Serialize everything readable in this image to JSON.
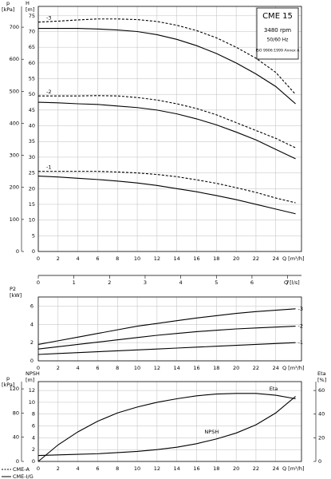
{
  "chart_data": [
    {
      "type": "line",
      "info": [
        "CME 15",
        "3480 rpm",
        "50/60 Hz",
        "ISO 9906:1999 Annex A"
      ],
      "y_label": "H",
      "y_unit": "[m]",
      "p_label": "p",
      "p_unit": "[kPa]",
      "x_label": "Q [m³/h]",
      "x": [
        0,
        2,
        4,
        6,
        8,
        10,
        12,
        14,
        16,
        18,
        20,
        22,
        24,
        26
      ],
      "xlim": [
        0,
        26.6
      ],
      "xticks": [
        0,
        2,
        4,
        6,
        8,
        10,
        12,
        14,
        16,
        18,
        20,
        22,
        24
      ],
      "ylim": [
        0,
        78
      ],
      "yticks": [
        0,
        5,
        10,
        15,
        20,
        25,
        30,
        35,
        40,
        45,
        50,
        55,
        60,
        65,
        70,
        75
      ],
      "plim": [
        0,
        765
      ],
      "pticks": [
        0,
        100,
        200,
        300,
        400,
        500,
        600,
        700
      ],
      "x2_label": "Q [l/s]",
      "x2lim": [
        0,
        7.39
      ],
      "x2ticks": [
        0,
        1,
        2,
        3,
        4,
        5,
        6,
        7
      ],
      "grid": true,
      "series": [
        {
          "label": "-3",
          "dash": true,
          "color": "#000000",
          "values": [
            73,
            73.3,
            73.7,
            74,
            74,
            73.8,
            73.2,
            72,
            70.3,
            68,
            65,
            61.5,
            57,
            50
          ]
        },
        {
          "dash": false,
          "color": "#000000",
          "values": [
            71,
            71,
            71,
            70.8,
            70.5,
            70,
            69,
            67.5,
            65.5,
            63,
            60,
            56.5,
            52.5,
            47
          ]
        },
        {
          "label": "-2",
          "dash": true,
          "color": "#000000",
          "values": [
            49.5,
            49.5,
            49.5,
            49.6,
            49.5,
            49,
            48.2,
            47,
            45.5,
            43.5,
            41,
            38.5,
            36,
            33
          ]
        },
        {
          "dash": false,
          "color": "#000000",
          "values": [
            47.5,
            47.3,
            47,
            46.8,
            46.3,
            45.8,
            45,
            43.8,
            42.2,
            40.3,
            38,
            35.5,
            32.5,
            29.5
          ]
        },
        {
          "label": "-1",
          "dash": true,
          "color": "#000000",
          "values": [
            25.5,
            25.5,
            25.5,
            25.5,
            25.3,
            25,
            24.5,
            23.8,
            22.8,
            21.7,
            20.3,
            18.8,
            17,
            15.5
          ]
        },
        {
          "dash": false,
          "color": "#000000",
          "values": [
            24,
            23.7,
            23.3,
            22.9,
            22.4,
            21.8,
            21,
            20,
            19,
            17.8,
            16.5,
            15,
            13.5,
            12
          ]
        }
      ]
    },
    {
      "type": "line",
      "y_label": "P2",
      "y_unit": "[kW]",
      "x_label": "Q [m³/h]",
      "x": [
        0,
        2,
        4,
        6,
        8,
        10,
        12,
        14,
        16,
        18,
        20,
        22,
        24,
        26
      ],
      "xlim": [
        0,
        26.6
      ],
      "xticks": [
        0,
        2,
        4,
        6,
        8,
        10,
        12,
        14,
        16,
        18,
        20,
        22,
        24
      ],
      "ylim": [
        0,
        7
      ],
      "yticks": [
        0,
        2,
        4,
        6
      ],
      "grid": true,
      "series": [
        {
          "label": "-3",
          "color": "#000000",
          "values": [
            1.8,
            2.2,
            2.6,
            3.0,
            3.4,
            3.8,
            4.1,
            4.4,
            4.7,
            4.95,
            5.2,
            5.4,
            5.55,
            5.7
          ]
        },
        {
          "label": "-2",
          "color": "#000000",
          "values": [
            1.3,
            1.55,
            1.8,
            2.05,
            2.3,
            2.55,
            2.8,
            3.0,
            3.2,
            3.35,
            3.5,
            3.6,
            3.7,
            3.8
          ]
        },
        {
          "label": "-1",
          "color": "#000000",
          "values": [
            0.7,
            0.8,
            0.9,
            1.0,
            1.1,
            1.2,
            1.3,
            1.4,
            1.5,
            1.6,
            1.7,
            1.8,
            1.9,
            2.0
          ]
        }
      ]
    },
    {
      "type": "line",
      "y_label": "NPSH",
      "y_unit": "[m]",
      "p_label": "p",
      "p_unit": "[kPa]",
      "y2_label": "Eta",
      "y2_unit": "[%]",
      "x_label": "Q [m³/h]",
      "x": [
        0,
        2,
        4,
        6,
        8,
        10,
        12,
        14,
        16,
        18,
        20,
        22,
        24,
        26
      ],
      "xlim": [
        0,
        26.6
      ],
      "xticks": [
        0,
        2,
        4,
        6,
        8,
        10,
        12,
        14,
        16,
        18,
        20,
        22,
        24
      ],
      "ylim": [
        0,
        13.5
      ],
      "yticks": [
        0,
        2,
        4,
        6,
        8,
        10,
        12
      ],
      "plim": [
        0,
        132
      ],
      "pticks": [
        0,
        40,
        80,
        120
      ],
      "y2lim": [
        0,
        67.5
      ],
      "y2ticks": [
        0,
        20,
        40,
        60
      ],
      "grid": true,
      "series": [
        {
          "label": "Eta",
          "axis": "y2",
          "color": "#000000",
          "values": [
            0,
            14,
            25,
            34,
            41,
            46,
            50,
            53,
            55.5,
            57,
            57.5,
            57.5,
            56,
            53
          ]
        },
        {
          "label": "NPSH",
          "color": "#000000",
          "values": [
            1,
            1.1,
            1.2,
            1.3,
            1.5,
            1.7,
            2,
            2.4,
            3,
            3.8,
            4.8,
            6.2,
            8.2,
            11
          ]
        }
      ]
    }
  ],
  "legend": [
    {
      "name": "CME-A",
      "dash": true
    },
    {
      "name": "CME-I/G",
      "dash": false
    }
  ]
}
